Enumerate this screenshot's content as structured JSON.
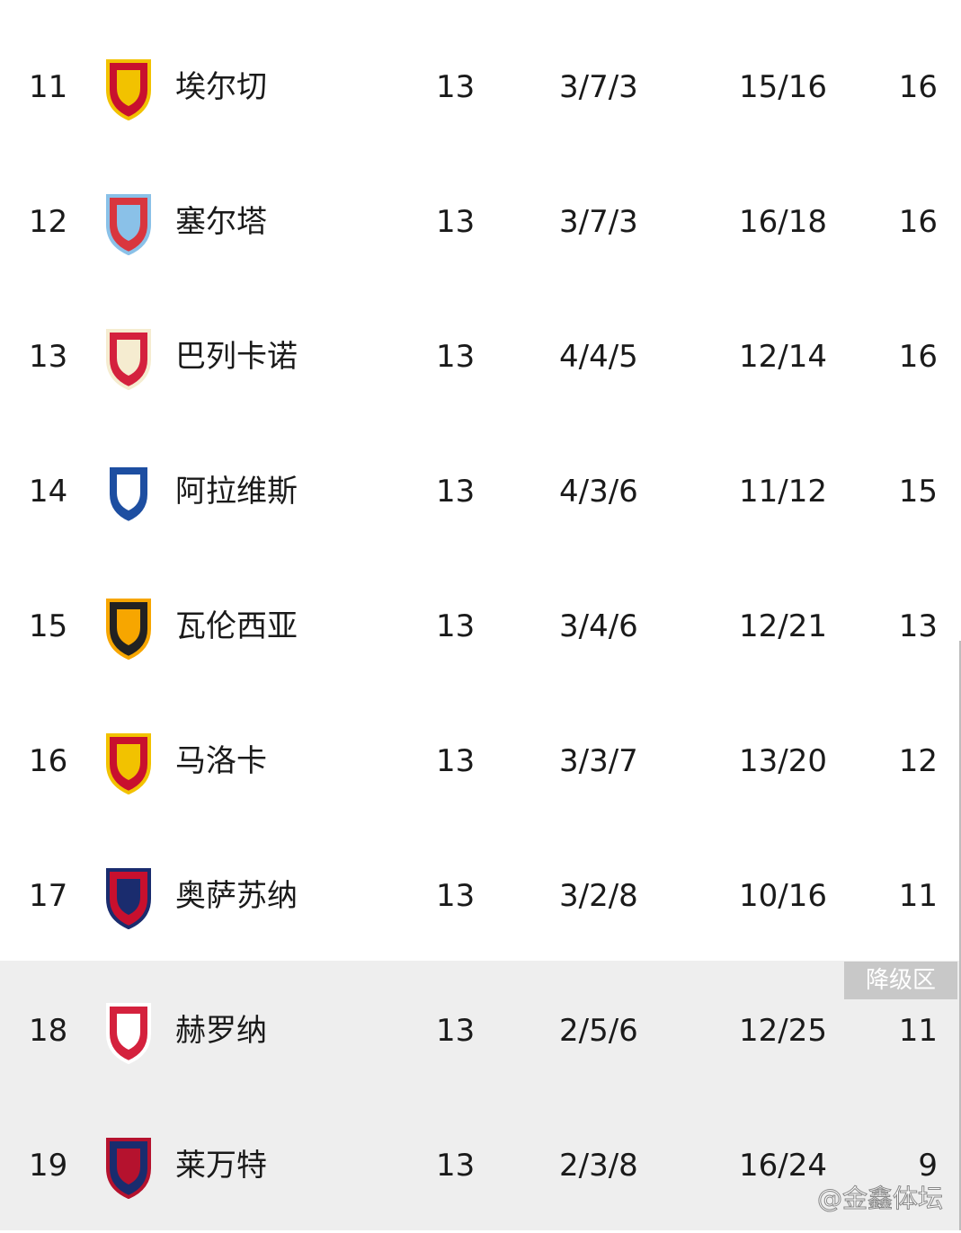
{
  "zone_label": "降级区",
  "watermark": "@金鑫体坛",
  "rows": [
    {
      "rank": "11",
      "team": "埃尔切",
      "played": "13",
      "wdl": "3/7/3",
      "goals": "15/16",
      "points": "16",
      "colors": [
        "#c8102e",
        "#f2c200"
      ]
    },
    {
      "rank": "12",
      "team": "塞尔塔",
      "played": "13",
      "wdl": "3/7/3",
      "goals": "16/18",
      "points": "16",
      "colors": [
        "#d9363e",
        "#8ac1e8"
      ]
    },
    {
      "rank": "13",
      "team": "巴列卡诺",
      "played": "13",
      "wdl": "4/4/5",
      "goals": "12/14",
      "points": "16",
      "colors": [
        "#d4213d",
        "#f5ecd0"
      ]
    },
    {
      "rank": "14",
      "team": "阿拉维斯",
      "played": "13",
      "wdl": "4/3/6",
      "goals": "11/12",
      "points": "15",
      "colors": [
        "#1d4ea1",
        "#ffffff"
      ]
    },
    {
      "rank": "15",
      "team": "瓦伦西亚",
      "played": "13",
      "wdl": "3/4/6",
      "goals": "12/21",
      "points": "13",
      "colors": [
        "#222222",
        "#f7a600"
      ]
    },
    {
      "rank": "16",
      "team": "马洛卡",
      "played": "13",
      "wdl": "3/3/7",
      "goals": "13/20",
      "points": "12",
      "colors": [
        "#c8102e",
        "#f2c200"
      ]
    },
    {
      "rank": "17",
      "team": "奥萨苏纳",
      "played": "13",
      "wdl": "3/2/8",
      "goals": "10/16",
      "points": "11",
      "colors": [
        "#c8102e",
        "#1a2c6e"
      ]
    },
    {
      "rank": "18",
      "team": "赫罗纳",
      "played": "13",
      "wdl": "2/5/6",
      "goals": "12/25",
      "points": "11",
      "colors": [
        "#d4213d",
        "#ffffff"
      ]
    },
    {
      "rank": "19",
      "team": "莱万特",
      "played": "13",
      "wdl": "2/3/8",
      "goals": "16/24",
      "points": "9",
      "colors": [
        "#1a2c6e",
        "#b5122e"
      ]
    }
  ]
}
